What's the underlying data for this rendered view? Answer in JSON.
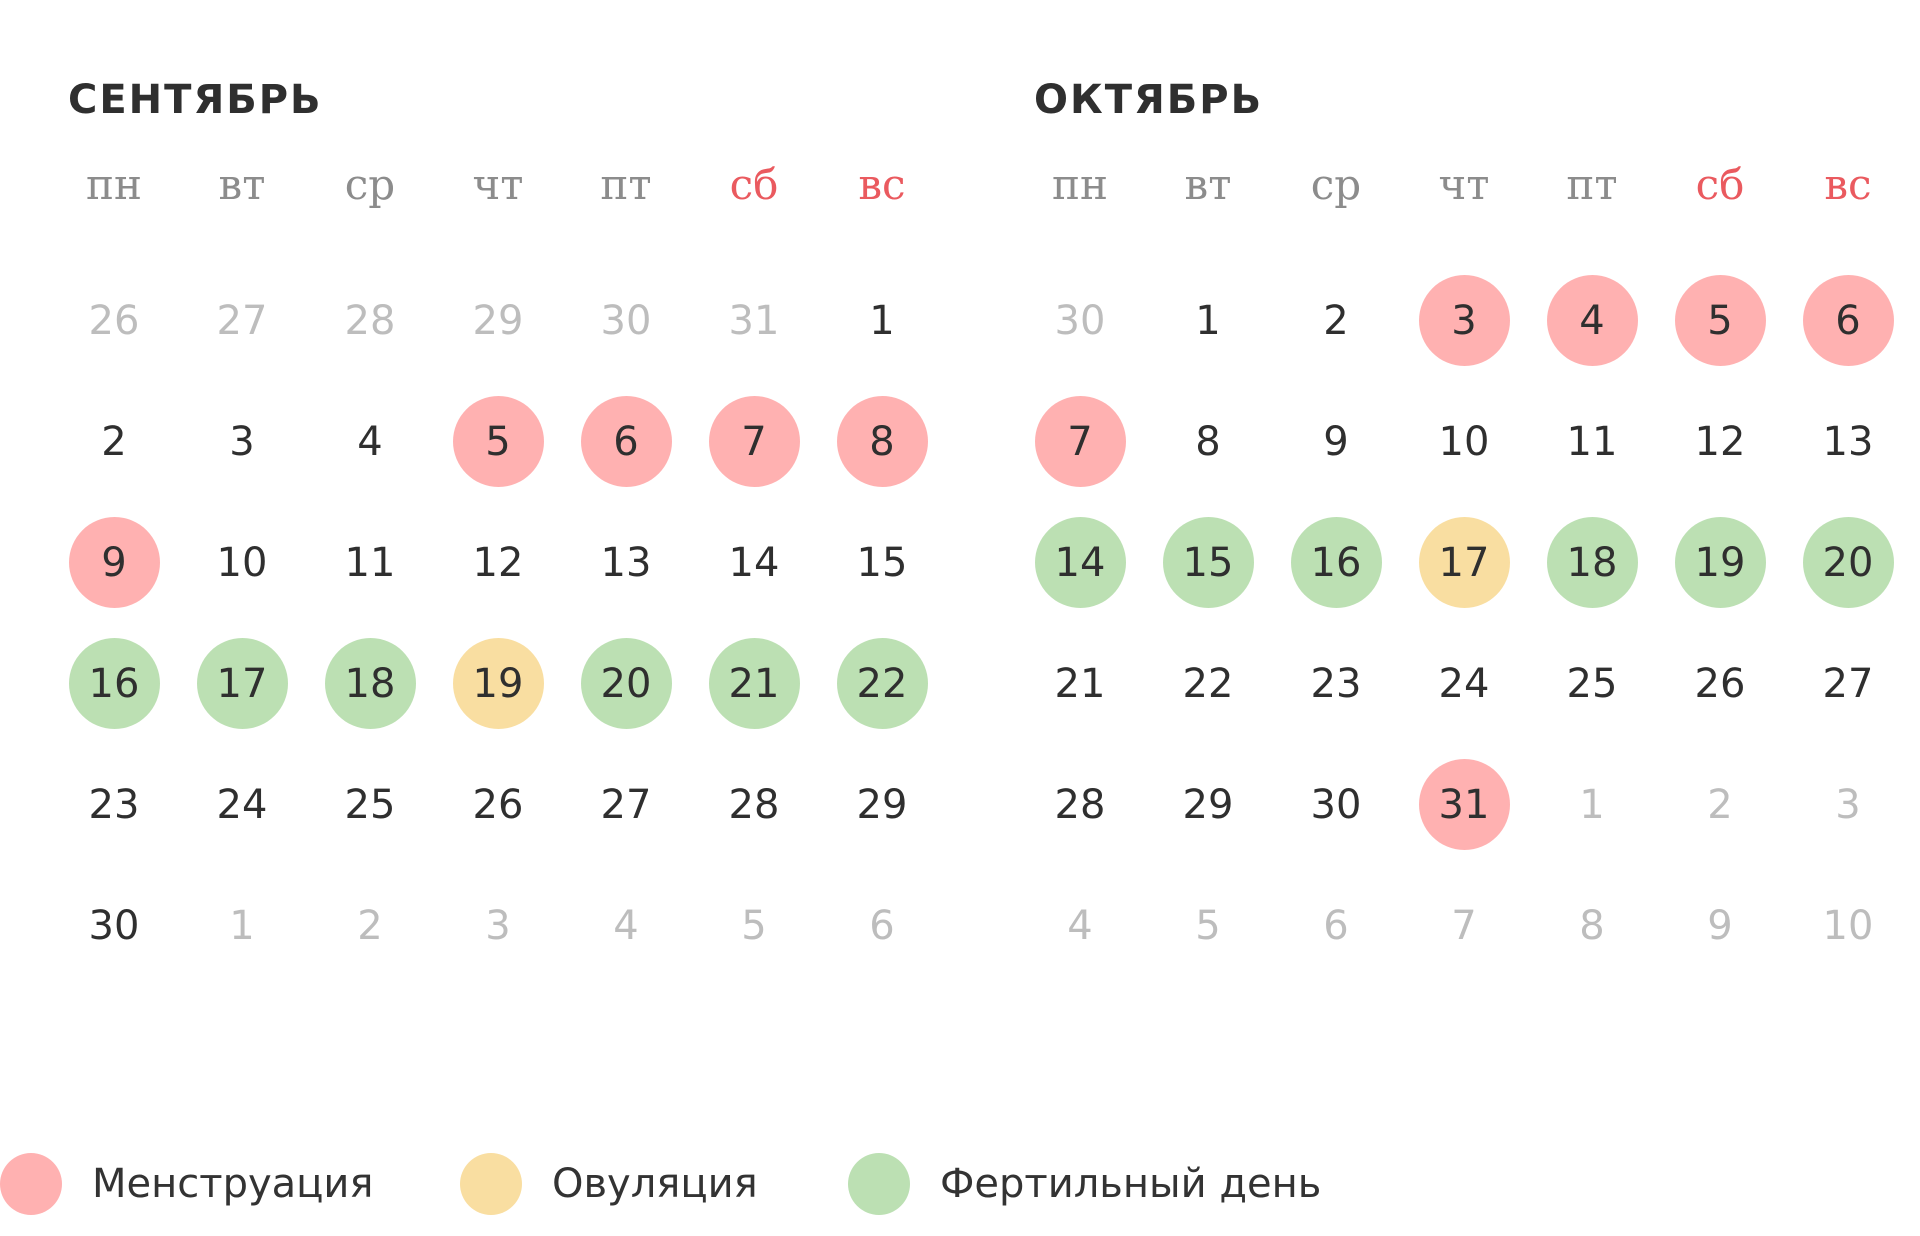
{
  "colors": {
    "menstruation": "#ffb1b1",
    "ovulation": "#f9dea1",
    "fertile": "#bce0b3",
    "weekend_text": "#ea5a5f",
    "weekday_text": "#8c8c8c",
    "other_month_text": "#bdbdbd"
  },
  "weekdays": [
    {
      "label": "пн",
      "weekend": false
    },
    {
      "label": "вт",
      "weekend": false
    },
    {
      "label": "ср",
      "weekend": false
    },
    {
      "label": "чт",
      "weekend": false
    },
    {
      "label": "пт",
      "weekend": false
    },
    {
      "label": "сб",
      "weekend": true
    },
    {
      "label": "вс",
      "weekend": true
    }
  ],
  "months": [
    {
      "title": "СЕНТЯБРЬ",
      "days": [
        {
          "n": "26",
          "other": true
        },
        {
          "n": "27",
          "other": true
        },
        {
          "n": "28",
          "other": true
        },
        {
          "n": "29",
          "other": true
        },
        {
          "n": "30",
          "other": true
        },
        {
          "n": "31",
          "other": true
        },
        {
          "n": "1"
        },
        {
          "n": "2"
        },
        {
          "n": "3"
        },
        {
          "n": "4"
        },
        {
          "n": "5",
          "type": "menstruation"
        },
        {
          "n": "6",
          "type": "menstruation"
        },
        {
          "n": "7",
          "type": "menstruation"
        },
        {
          "n": "8",
          "type": "menstruation"
        },
        {
          "n": "9",
          "type": "menstruation"
        },
        {
          "n": "10"
        },
        {
          "n": "11"
        },
        {
          "n": "12"
        },
        {
          "n": "13"
        },
        {
          "n": "14"
        },
        {
          "n": "15"
        },
        {
          "n": "16",
          "type": "fertile"
        },
        {
          "n": "17",
          "type": "fertile"
        },
        {
          "n": "18",
          "type": "fertile"
        },
        {
          "n": "19",
          "type": "ovulation"
        },
        {
          "n": "20",
          "type": "fertile"
        },
        {
          "n": "21",
          "type": "fertile"
        },
        {
          "n": "22",
          "type": "fertile"
        },
        {
          "n": "23"
        },
        {
          "n": "24"
        },
        {
          "n": "25"
        },
        {
          "n": "26"
        },
        {
          "n": "27"
        },
        {
          "n": "28"
        },
        {
          "n": "29"
        },
        {
          "n": "30"
        },
        {
          "n": "1",
          "other": true
        },
        {
          "n": "2",
          "other": true
        },
        {
          "n": "3",
          "other": true
        },
        {
          "n": "4",
          "other": true
        },
        {
          "n": "5",
          "other": true
        },
        {
          "n": "6",
          "other": true
        }
      ]
    },
    {
      "title": "ОКТЯБРЬ",
      "days": [
        {
          "n": "30",
          "other": true
        },
        {
          "n": "1"
        },
        {
          "n": "2"
        },
        {
          "n": "3",
          "type": "menstruation"
        },
        {
          "n": "4",
          "type": "menstruation"
        },
        {
          "n": "5",
          "type": "menstruation"
        },
        {
          "n": "6",
          "type": "menstruation"
        },
        {
          "n": "7",
          "type": "menstruation"
        },
        {
          "n": "8"
        },
        {
          "n": "9"
        },
        {
          "n": "10"
        },
        {
          "n": "11"
        },
        {
          "n": "12"
        },
        {
          "n": "13"
        },
        {
          "n": "14",
          "type": "fertile"
        },
        {
          "n": "15",
          "type": "fertile"
        },
        {
          "n": "16",
          "type": "fertile"
        },
        {
          "n": "17",
          "type": "ovulation"
        },
        {
          "n": "18",
          "type": "fertile"
        },
        {
          "n": "19",
          "type": "fertile"
        },
        {
          "n": "20",
          "type": "fertile"
        },
        {
          "n": "21"
        },
        {
          "n": "22"
        },
        {
          "n": "23"
        },
        {
          "n": "24"
        },
        {
          "n": "25"
        },
        {
          "n": "26"
        },
        {
          "n": "27"
        },
        {
          "n": "28"
        },
        {
          "n": "29"
        },
        {
          "n": "30"
        },
        {
          "n": "31",
          "type": "menstruation"
        },
        {
          "n": "1",
          "other": true
        },
        {
          "n": "2",
          "other": true
        },
        {
          "n": "3",
          "other": true
        },
        {
          "n": "4",
          "other": true
        },
        {
          "n": "5",
          "other": true
        },
        {
          "n": "6",
          "other": true
        },
        {
          "n": "7",
          "other": true
        },
        {
          "n": "8",
          "other": true
        },
        {
          "n": "9",
          "other": true
        },
        {
          "n": "10",
          "other": true
        }
      ]
    }
  ],
  "legend": [
    {
      "label": "Менструация",
      "type": "menstruation"
    },
    {
      "label": "Овуляция",
      "type": "ovulation"
    },
    {
      "label": "Фертильный день",
      "type": "fertile"
    }
  ]
}
